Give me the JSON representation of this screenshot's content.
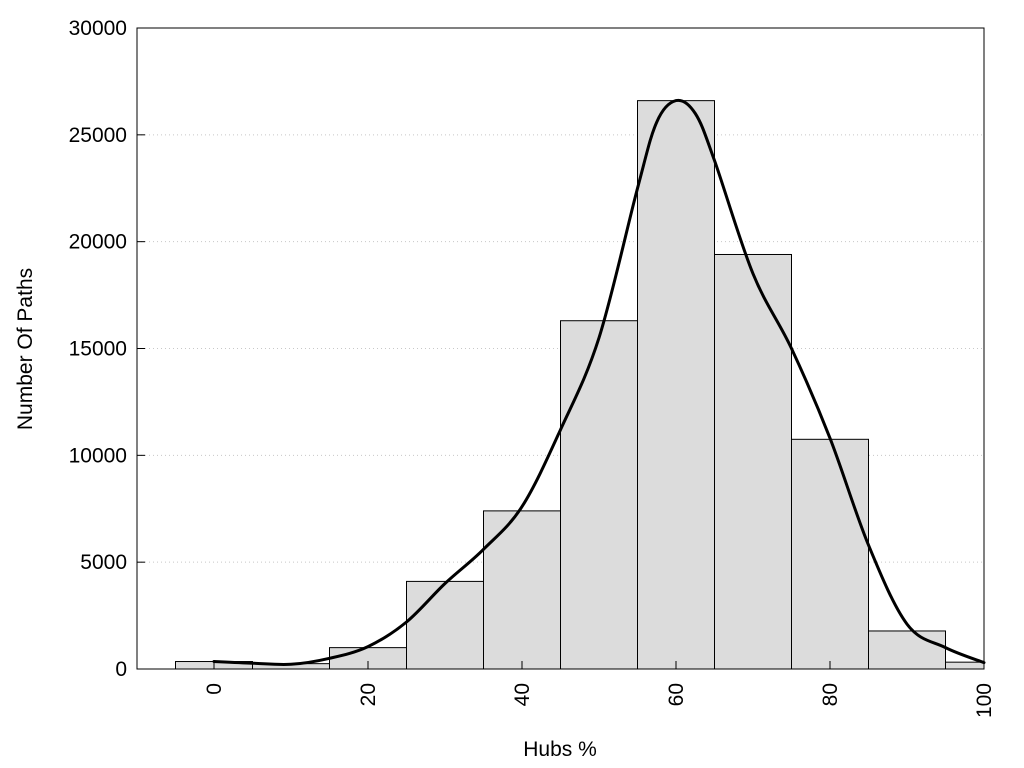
{
  "chart_data": {
    "type": "bar",
    "title": "",
    "xlabel": "Hubs %",
    "ylabel": "Number Of Paths",
    "xlim": [
      -10,
      100
    ],
    "ylim": [
      0,
      30000
    ],
    "xticks": [
      "0",
      "20",
      "40",
      "60",
      "80",
      "100"
    ],
    "yticks": [
      "0",
      "5000",
      "10000",
      "15000",
      "20000",
      "25000",
      "30000"
    ],
    "grid": "horizontal dotted",
    "legend": "none",
    "bin_width": 10,
    "bars": [
      {
        "x": 0,
        "value": 350
      },
      {
        "x": 10,
        "value": 250
      },
      {
        "x": 20,
        "value": 1000
      },
      {
        "x": 30,
        "value": 4100
      },
      {
        "x": 40,
        "value": 7400
      },
      {
        "x": 50,
        "value": 16300
      },
      {
        "x": 60,
        "value": 26600
      },
      {
        "x": 70,
        "value": 19400
      },
      {
        "x": 80,
        "value": 10750
      },
      {
        "x": 90,
        "value": 1780
      },
      {
        "x": 100,
        "value": 320
      }
    ],
    "density_curve": {
      "x": [
        0,
        5,
        10,
        15,
        20,
        25,
        30,
        35,
        40,
        45,
        50,
        55,
        57.5,
        60,
        62.5,
        65,
        70,
        75,
        80,
        85,
        90,
        95,
        100
      ],
      "y": [
        350,
        270,
        220,
        500,
        1050,
        2200,
        4000,
        5600,
        7600,
        11200,
        15500,
        22500,
        25600,
        26600,
        26000,
        23800,
        18500,
        15000,
        10800,
        5800,
        2100,
        1000,
        300
      ]
    },
    "colors": {
      "bar_fill": "#dcdcdc",
      "bar_stroke": "#000000",
      "curve": "#000000"
    }
  }
}
